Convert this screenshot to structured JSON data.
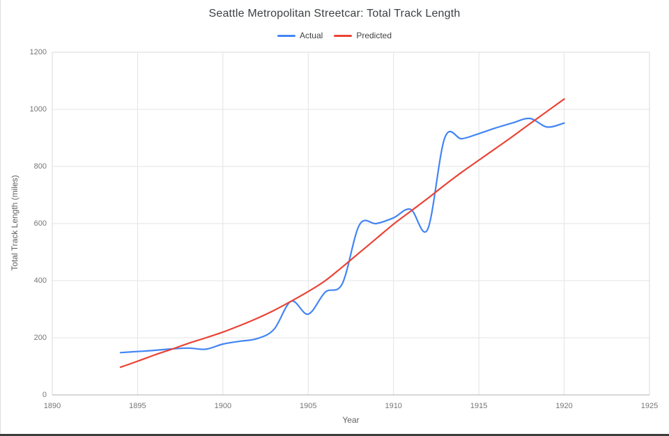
{
  "page": {
    "title": "Seattle Metropolitan Streetcar: Total Track Length"
  },
  "chart_data": {
    "type": "line",
    "title": "Seattle Metropolitan Streetcar: Total Track Length",
    "xlabel": "Year",
    "ylabel": "Total Track Length (miles)",
    "xlim": [
      1890,
      1925
    ],
    "ylim": [
      0,
      1200
    ],
    "x_ticks": [
      1890,
      1895,
      1900,
      1905,
      1910,
      1915,
      1920,
      1925
    ],
    "y_ticks": [
      0,
      200,
      400,
      600,
      800,
      1000,
      1200
    ],
    "grid": true,
    "legend_position": "top-center",
    "line_style": "smooth",
    "x": [
      1894,
      1895,
      1896,
      1897,
      1898,
      1899,
      1900,
      1901,
      1902,
      1903,
      1904,
      1905,
      1906,
      1907,
      1908,
      1909,
      1910,
      1911,
      1912,
      1913,
      1914,
      1915,
      1916,
      1917,
      1918,
      1919,
      1920
    ],
    "series": [
      {
        "name": "Actual",
        "color": "#4285F4",
        "values": [
          148,
          152,
          156,
          161,
          164,
          160,
          178,
          188,
          197,
          230,
          328,
          283,
          360,
          390,
          595,
          600,
          620,
          650,
          580,
          900,
          897,
          915,
          935,
          953,
          968,
          938,
          952
        ]
      },
      {
        "name": "Predicted",
        "color": "#EA4335",
        "values": [
          97,
          118,
          140,
          160,
          181,
          200,
          220,
          243,
          268,
          296,
          328,
          362,
          400,
          448,
          498,
          548,
          598,
          643,
          688,
          735,
          780,
          822,
          864,
          906,
          950,
          993,
          1036
        ]
      }
    ]
  },
  "colors": {
    "background": "#ffffff",
    "gridline": "#e3e3e3",
    "plot_border": "#d9d9d9",
    "axis_line": "#b0b0b0",
    "title_text": "#3c4043",
    "tick_text": "#757575",
    "axis_title_text": "#616161",
    "legend_text": "#424242",
    "actual_line": "#4285F4",
    "predicted_line": "#EA4335"
  }
}
